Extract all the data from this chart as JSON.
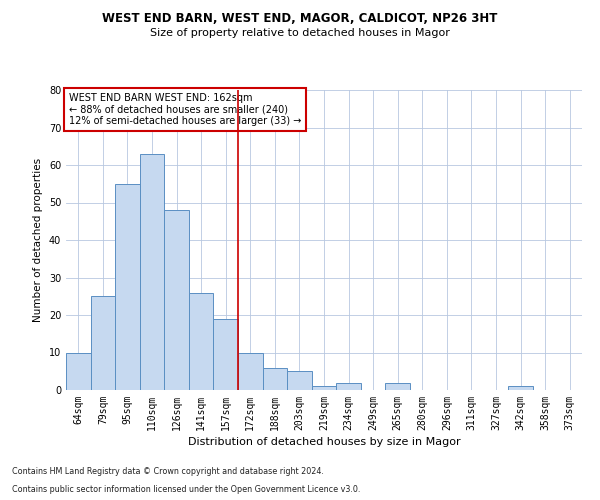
{
  "title1": "WEST END BARN, WEST END, MAGOR, CALDICOT, NP26 3HT",
  "title2": "Size of property relative to detached houses in Magor",
  "xlabel": "Distribution of detached houses by size in Magor",
  "ylabel": "Number of detached properties",
  "footnote1": "Contains HM Land Registry data © Crown copyright and database right 2024.",
  "footnote2": "Contains public sector information licensed under the Open Government Licence v3.0.",
  "bar_color": "#c6d9f0",
  "bar_edge_color": "#5a8fc3",
  "grid_color": "#b8c8e0",
  "vline_color": "#cc0000",
  "vline_x": 6.5,
  "annotation_box_color": "#cc0000",
  "annotation_text1": "WEST END BARN WEST END: 162sqm",
  "annotation_text2": "← 88% of detached houses are smaller (240)",
  "annotation_text3": "12% of semi-detached houses are larger (33) →",
  "categories": [
    "64sqm",
    "79sqm",
    "95sqm",
    "110sqm",
    "126sqm",
    "141sqm",
    "157sqm",
    "172sqm",
    "188sqm",
    "203sqm",
    "219sqm",
    "234sqm",
    "249sqm",
    "265sqm",
    "280sqm",
    "296sqm",
    "311sqm",
    "327sqm",
    "342sqm",
    "358sqm",
    "373sqm"
  ],
  "values": [
    10,
    25,
    55,
    63,
    48,
    26,
    19,
    10,
    6,
    5,
    1,
    2,
    0,
    2,
    0,
    0,
    0,
    0,
    1,
    0,
    0
  ],
  "ylim": [
    0,
    80
  ],
  "yticks": [
    0,
    10,
    20,
    30,
    40,
    50,
    60,
    70,
    80
  ],
  "title1_fontsize": 8.5,
  "title2_fontsize": 8.0,
  "xlabel_fontsize": 8.0,
  "ylabel_fontsize": 7.5,
  "tick_fontsize": 7.0,
  "annotation_fontsize": 7.0,
  "footnote_fontsize": 5.8
}
